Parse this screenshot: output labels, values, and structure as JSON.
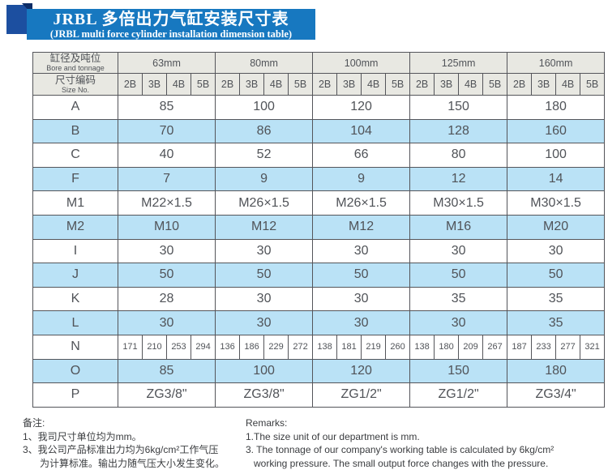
{
  "banner": {
    "title_zh": "JRBL 多倍出力气缸安装尺寸表",
    "subtitle_en": "(JRBL multi force cylinder installation dimension table)"
  },
  "table": {
    "corner_top": {
      "zh": "缸径及吨位",
      "en": "Bore and tonnage"
    },
    "corner_bottom": {
      "zh": "尺寸编码",
      "en": "Size No."
    },
    "bore_groups": [
      "63mm",
      "80mm",
      "100mm",
      "125mm",
      "160mm"
    ],
    "size_codes": [
      "2B",
      "3B",
      "4B",
      "5B"
    ],
    "rows": [
      {
        "label": "A",
        "span": "group",
        "values": [
          "85",
          "100",
          "120",
          "150",
          "180"
        ]
      },
      {
        "label": "B",
        "span": "group",
        "values": [
          "70",
          "86",
          "104",
          "128",
          "160"
        ]
      },
      {
        "label": "C",
        "span": "group",
        "values": [
          "40",
          "52",
          "66",
          "80",
          "100"
        ]
      },
      {
        "label": "F",
        "span": "group",
        "values": [
          "7",
          "9",
          "9",
          "12",
          "14"
        ]
      },
      {
        "label": "M1",
        "span": "group",
        "values": [
          "M22×1.5",
          "M26×1.5",
          "M26×1.5",
          "M30×1.5",
          "M30×1.5"
        ]
      },
      {
        "label": "M2",
        "span": "group",
        "values": [
          "M10",
          "M12",
          "M12",
          "M16",
          "M20"
        ]
      },
      {
        "label": "I",
        "span": "group",
        "values": [
          "30",
          "30",
          "30",
          "30",
          "30"
        ]
      },
      {
        "label": "J",
        "span": "group",
        "values": [
          "50",
          "50",
          "50",
          "50",
          "50"
        ]
      },
      {
        "label": "K",
        "span": "group",
        "values": [
          "28",
          "30",
          "30",
          "35",
          "35"
        ]
      },
      {
        "label": "L",
        "span": "group",
        "values": [
          "30",
          "30",
          "30",
          "30",
          "35"
        ]
      },
      {
        "label": "N",
        "span": "each",
        "values": [
          "171",
          "210",
          "253",
          "294",
          "136",
          "186",
          "229",
          "272",
          "138",
          "181",
          "219",
          "260",
          "138",
          "180",
          "209",
          "267",
          "187",
          "233",
          "277",
          "321"
        ]
      },
      {
        "label": "O",
        "span": "group",
        "values": [
          "85",
          "100",
          "120",
          "150",
          "180"
        ]
      },
      {
        "label": "P",
        "span": "group",
        "values": [
          "ZG3/8\"",
          "ZG3/8\"",
          "ZG1/2\"",
          "ZG1/2\"",
          "ZG3/4\""
        ]
      }
    ]
  },
  "notes_zh": {
    "title": "备注:",
    "lines": [
      "1、我司尺寸单位均为mm。",
      "3、我公司产品标准出力均为6kg/cm²工作气压",
      "为计算标准。输出力随气压大小发生变化。"
    ]
  },
  "notes_en": {
    "title": "Remarks:",
    "lines": [
      "1.The size unit of our department is mm.",
      "3. The tonnage of our company's working table is calculated by 6kg/cm²",
      "working pressure. The small output force changes with the pressure."
    ]
  },
  "colors": {
    "banner_bg": "#1778c0",
    "ribbon": "#1c4fa0",
    "fold": "#0c2c66",
    "header_bg": "#e8e8e2",
    "row_alt_bg": "#bae2f6",
    "border": "#54555a",
    "text": "#505358"
  }
}
